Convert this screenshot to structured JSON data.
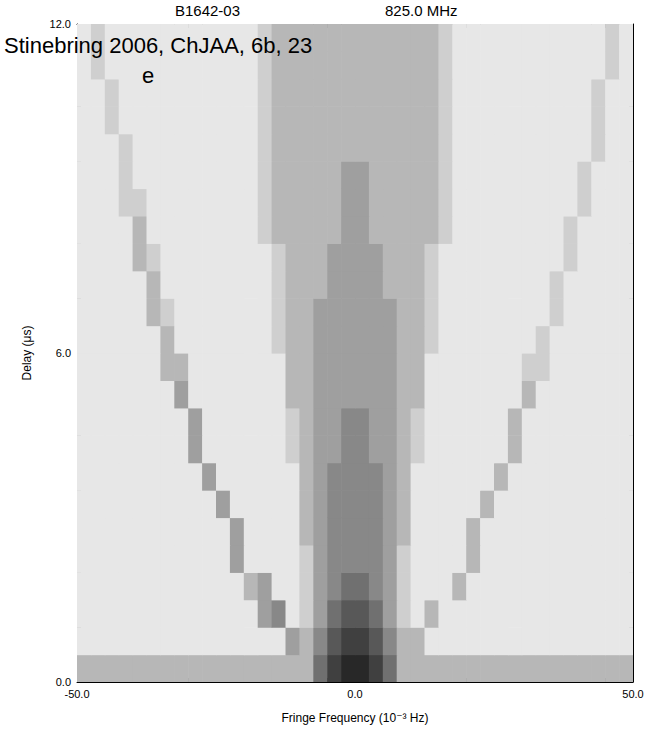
{
  "chart_data": {
    "type": "heatmap",
    "title": "B1642-03",
    "subtitle": "825.0 MHz",
    "annotations": [
      "Stinebring 2006, ChJAA, 6b, 23",
      "e"
    ],
    "x_label": "Fringe Frequency (10⁻³ Hz)",
    "y_label": "Delay (μs)",
    "xlim": [
      -50,
      50
    ],
    "xticks": [
      {
        "value": -50,
        "label": "-50.0"
      },
      {
        "value": 0,
        "label": "0.0"
      },
      {
        "value": 50,
        "label": "50.0"
      }
    ],
    "ylim": [
      0,
      12
    ],
    "yticks": [
      {
        "value": 0,
        "label": "0.0"
      },
      {
        "value": 6,
        "label": "6.0"
      },
      {
        "value": 12,
        "label": "12.0"
      }
    ],
    "grid": false,
    "value_range": [
      0,
      9
    ],
    "x": [
      -48.75,
      -46.25,
      -43.75,
      -41.25,
      -38.75,
      -36.25,
      -33.75,
      -31.25,
      -28.75,
      -26.25,
      -23.75,
      -21.25,
      -18.75,
      -16.25,
      -13.75,
      -11.25,
      -8.75,
      -6.25,
      -3.75,
      -1.25,
      1.25,
      3.75,
      6.25,
      8.75,
      11.25,
      13.75,
      16.25,
      18.75,
      21.25,
      23.75,
      26.25,
      28.75,
      31.25,
      33.75,
      36.25,
      38.75,
      41.25,
      43.75,
      46.25,
      48.75
    ],
    "y": [
      0.25,
      0.75,
      1.25,
      1.75,
      2.25,
      2.75,
      3.25,
      3.75,
      4.25,
      4.75,
      5.25,
      5.75,
      6.25,
      6.75,
      7.25,
      7.75,
      8.25,
      8.75,
      9.25,
      9.75,
      10.25,
      10.75,
      11.25,
      11.75
    ],
    "cells": [
      [
        3,
        3,
        3,
        3,
        3,
        3,
        3,
        3,
        3,
        3,
        3,
        3,
        3,
        3,
        3,
        3,
        3,
        6,
        8,
        9,
        9,
        8,
        6,
        3,
        3,
        3,
        3,
        3,
        3,
        3,
        3,
        3,
        3,
        3,
        3,
        3,
        3,
        3,
        3,
        3
      ],
      [
        1,
        1,
        1,
        1,
        1,
        1,
        1,
        1,
        1,
        1,
        1,
        1,
        1,
        1,
        1,
        4,
        3,
        5,
        7,
        8,
        8,
        7,
        5,
        3,
        3,
        1,
        1,
        1,
        1,
        1,
        1,
        1,
        1,
        1,
        1,
        1,
        1,
        1,
        1,
        1
      ],
      [
        1,
        1,
        1,
        1,
        1,
        1,
        1,
        1,
        1,
        1,
        1,
        1,
        1,
        4,
        5,
        1,
        2,
        4,
        6,
        7,
        7,
        6,
        4,
        2,
        1,
        3,
        1,
        1,
        1,
        1,
        1,
        1,
        1,
        1,
        1,
        1,
        1,
        1,
        1,
        1
      ],
      [
        1,
        1,
        1,
        1,
        1,
        1,
        1,
        1,
        1,
        1,
        1,
        1,
        3,
        4,
        1,
        1,
        2,
        4,
        5,
        6,
        6,
        5,
        4,
        2,
        1,
        1,
        1,
        3,
        1,
        1,
        1,
        1,
        1,
        1,
        1,
        1,
        1,
        1,
        1,
        1
      ],
      [
        1,
        1,
        1,
        1,
        1,
        1,
        1,
        1,
        1,
        1,
        1,
        4,
        1,
        1,
        1,
        1,
        2,
        4,
        5,
        5,
        5,
        5,
        4,
        2,
        1,
        1,
        1,
        1,
        3,
        1,
        1,
        1,
        1,
        1,
        1,
        1,
        1,
        1,
        1,
        1
      ],
      [
        1,
        1,
        1,
        1,
        1,
        1,
        1,
        1,
        1,
        1,
        1,
        4,
        1,
        1,
        1,
        1,
        3,
        4,
        5,
        5,
        5,
        5,
        4,
        3,
        1,
        1,
        1,
        1,
        3,
        1,
        1,
        1,
        1,
        1,
        1,
        1,
        1,
        1,
        1,
        1
      ],
      [
        1,
        1,
        1,
        1,
        1,
        1,
        1,
        1,
        1,
        1,
        4,
        1,
        1,
        1,
        1,
        1,
        3,
        4,
        5,
        5,
        5,
        5,
        4,
        3,
        1,
        1,
        1,
        1,
        1,
        3,
        1,
        1,
        1,
        1,
        1,
        1,
        1,
        1,
        1,
        1
      ],
      [
        1,
        1,
        1,
        1,
        1,
        1,
        1,
        1,
        1,
        4,
        1,
        1,
        1,
        1,
        1,
        1,
        3,
        4,
        5,
        5,
        5,
        5,
        4,
        3,
        1,
        1,
        1,
        1,
        1,
        1,
        3,
        1,
        1,
        1,
        1,
        1,
        1,
        1,
        1,
        1
      ],
      [
        1,
        1,
        1,
        1,
        1,
        1,
        1,
        1,
        4,
        1,
        1,
        1,
        1,
        1,
        1,
        2,
        3,
        4,
        4,
        5,
        5,
        4,
        4,
        3,
        2,
        1,
        1,
        1,
        1,
        1,
        1,
        3,
        1,
        1,
        1,
        1,
        1,
        1,
        1,
        1
      ],
      [
        1,
        1,
        1,
        1,
        1,
        1,
        1,
        1,
        4,
        1,
        1,
        1,
        1,
        1,
        1,
        2,
        3,
        4,
        4,
        5,
        5,
        4,
        4,
        3,
        2,
        1,
        1,
        1,
        1,
        1,
        1,
        3,
        1,
        1,
        1,
        1,
        1,
        1,
        1,
        1
      ],
      [
        1,
        1,
        1,
        1,
        1,
        1,
        1,
        4,
        1,
        1,
        1,
        1,
        1,
        1,
        1,
        3,
        3,
        4,
        4,
        4,
        4,
        4,
        4,
        3,
        3,
        1,
        1,
        1,
        1,
        1,
        1,
        1,
        3,
        1,
        1,
        1,
        1,
        1,
        1,
        1
      ],
      [
        1,
        1,
        1,
        1,
        1,
        1,
        3,
        3,
        1,
        1,
        1,
        1,
        1,
        1,
        1,
        3,
        3,
        4,
        4,
        4,
        4,
        4,
        4,
        3,
        3,
        1,
        1,
        1,
        1,
        1,
        1,
        1,
        2,
        2,
        1,
        1,
        1,
        1,
        1,
        1
      ],
      [
        1,
        1,
        1,
        1,
        1,
        1,
        3,
        1,
        1,
        1,
        1,
        1,
        1,
        1,
        2,
        3,
        3,
        4,
        4,
        4,
        4,
        4,
        4,
        3,
        3,
        2,
        1,
        1,
        1,
        1,
        1,
        1,
        1,
        2,
        1,
        1,
        1,
        1,
        1,
        1
      ],
      [
        1,
        1,
        1,
        1,
        1,
        3,
        2,
        1,
        1,
        1,
        1,
        1,
        1,
        1,
        2,
        3,
        3,
        4,
        4,
        4,
        4,
        4,
        4,
        3,
        3,
        2,
        1,
        1,
        1,
        1,
        1,
        1,
        1,
        1,
        2,
        1,
        1,
        1,
        1,
        1
      ],
      [
        1,
        1,
        1,
        1,
        1,
        3,
        1,
        1,
        1,
        1,
        1,
        1,
        1,
        1,
        2,
        3,
        3,
        3,
        4,
        4,
        4,
        4,
        3,
        3,
        3,
        2,
        1,
        1,
        1,
        1,
        1,
        1,
        1,
        1,
        2,
        1,
        1,
        1,
        1,
        1
      ],
      [
        1,
        1,
        1,
        1,
        3,
        2,
        1,
        1,
        1,
        1,
        1,
        1,
        1,
        1,
        2,
        3,
        3,
        3,
        4,
        4,
        4,
        4,
        3,
        3,
        3,
        2,
        1,
        1,
        1,
        1,
        1,
        1,
        1,
        1,
        1,
        2,
        1,
        1,
        1,
        1
      ],
      [
        1,
        1,
        1,
        1,
        3,
        1,
        1,
        1,
        1,
        1,
        1,
        1,
        1,
        2,
        3,
        3,
        3,
        3,
        3,
        4,
        4,
        3,
        3,
        3,
        3,
        3,
        2,
        1,
        1,
        1,
        1,
        1,
        1,
        1,
        1,
        2,
        1,
        1,
        1,
        1
      ],
      [
        1,
        1,
        1,
        2,
        2,
        1,
        1,
        1,
        1,
        1,
        1,
        1,
        1,
        2,
        3,
        3,
        3,
        3,
        3,
        4,
        4,
        3,
        3,
        3,
        3,
        3,
        2,
        1,
        1,
        1,
        1,
        1,
        1,
        1,
        1,
        1,
        2,
        1,
        1,
        1
      ],
      [
        1,
        1,
        1,
        2,
        1,
        1,
        1,
        1,
        1,
        1,
        1,
        1,
        1,
        2,
        3,
        3,
        3,
        3,
        3,
        4,
        4,
        3,
        3,
        3,
        3,
        3,
        2,
        1,
        1,
        1,
        1,
        1,
        1,
        1,
        1,
        1,
        2,
        1,
        1,
        1
      ],
      [
        1,
        1,
        1,
        2,
        1,
        1,
        1,
        1,
        1,
        1,
        1,
        1,
        1,
        2,
        3,
        3,
        3,
        3,
        3,
        3,
        3,
        3,
        3,
        3,
        3,
        3,
        2,
        1,
        1,
        1,
        1,
        1,
        1,
        1,
        1,
        1,
        1,
        2,
        1,
        1
      ],
      [
        1,
        1,
        2,
        1,
        1,
        1,
        1,
        1,
        1,
        1,
        1,
        1,
        1,
        2,
        3,
        3,
        3,
        3,
        3,
        3,
        3,
        3,
        3,
        3,
        3,
        3,
        2,
        1,
        1,
        1,
        1,
        1,
        1,
        1,
        1,
        1,
        1,
        2,
        1,
        1
      ],
      [
        1,
        1,
        2,
        1,
        1,
        1,
        1,
        1,
        1,
        1,
        1,
        1,
        1,
        2,
        3,
        3,
        3,
        3,
        3,
        3,
        3,
        3,
        3,
        3,
        3,
        3,
        2,
        1,
        1,
        1,
        1,
        1,
        1,
        1,
        1,
        1,
        1,
        2,
        1,
        1
      ],
      [
        1,
        2,
        1,
        1,
        1,
        1,
        1,
        1,
        1,
        1,
        1,
        1,
        1,
        2,
        3,
        3,
        3,
        3,
        3,
        3,
        3,
        3,
        3,
        3,
        3,
        3,
        2,
        1,
        1,
        1,
        1,
        1,
        1,
        1,
        1,
        1,
        1,
        1,
        2,
        1
      ],
      [
        1,
        2,
        1,
        1,
        1,
        1,
        1,
        1,
        1,
        1,
        1,
        1,
        1,
        2,
        3,
        3,
        3,
        3,
        3,
        3,
        3,
        3,
        3,
        3,
        3,
        3,
        2,
        1,
        1,
        1,
        1,
        1,
        1,
        1,
        1,
        1,
        1,
        1,
        2,
        1
      ]
    ]
  }
}
